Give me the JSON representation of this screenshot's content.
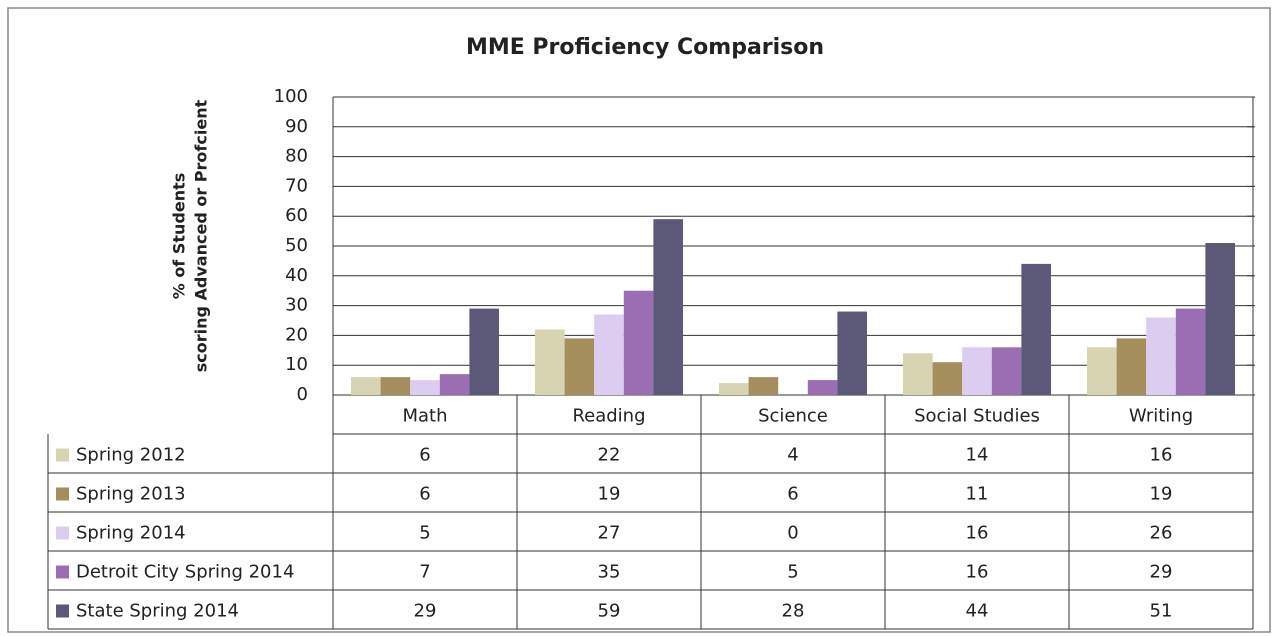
{
  "chart_data": {
    "type": "bar",
    "title": "MME Proficiency Comparison",
    "y_label": [
      "% of Students",
      "scoring  Advanced or Profcient"
    ],
    "categories": [
      "Math",
      "Reading",
      "Science",
      "Social Studies",
      "Writing"
    ],
    "series": [
      {
        "name": "Spring 2012",
        "color": "#d8d4b2",
        "values": [
          6,
          22,
          4,
          14,
          16
        ]
      },
      {
        "name": "Spring 2013",
        "color": "#a38e5c",
        "values": [
          6,
          19,
          6,
          11,
          19
        ]
      },
      {
        "name": "Spring 2014",
        "color": "#dccdf0",
        "values": [
          5,
          27,
          0,
          16,
          26
        ]
      },
      {
        "name": "Detroit City Spring 2014",
        "color": "#9b6db2",
        "values": [
          7,
          35,
          5,
          16,
          29
        ]
      },
      {
        "name": "State Spring 2014",
        "color": "#5c5878",
        "values": [
          29,
          59,
          28,
          44,
          51
        ]
      }
    ],
    "ylim": [
      0,
      100
    ],
    "yticks": [
      0,
      10,
      20,
      30,
      40,
      50,
      60,
      70,
      80,
      90,
      100
    ],
    "grid": true,
    "data_table": true
  }
}
